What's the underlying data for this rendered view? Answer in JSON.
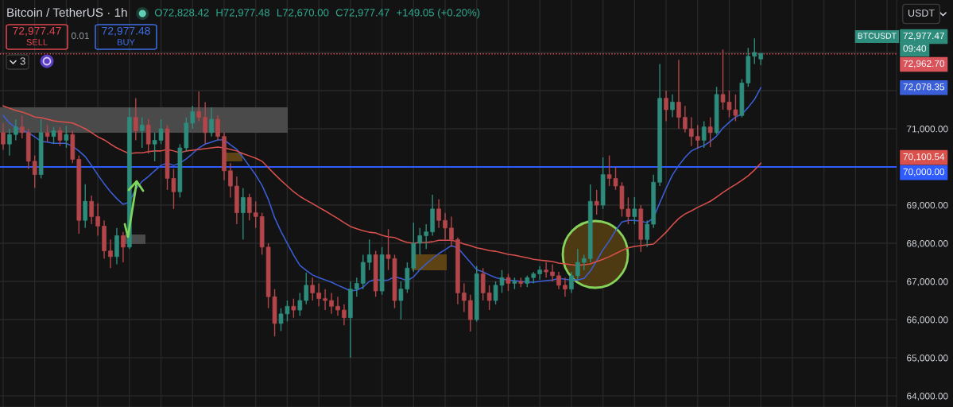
{
  "chart_data": {
    "type": "candlestick",
    "title": "Bitcoin / TetherUS · 1h",
    "categories": [
      null,
      null,
      null,
      null,
      null,
      null,
      null,
      null,
      null,
      null,
      null,
      null,
      null,
      null,
      null,
      null,
      null,
      null,
      null,
      null,
      null,
      null,
      null,
      null,
      null,
      null,
      null,
      null,
      null,
      null,
      null,
      null,
      null,
      null,
      null,
      null,
      null,
      null,
      null,
      null,
      null,
      null,
      null,
      null,
      null,
      null,
      null,
      null,
      null,
      null,
      null,
      null,
      null,
      null,
      null,
      null,
      null,
      null,
      null,
      null,
      null,
      null,
      null,
      null,
      null,
      null,
      null,
      null,
      null,
      null,
      null,
      null,
      null,
      null,
      null,
      null,
      null,
      null,
      null,
      null,
      null,
      null,
      null,
      null,
      null,
      null,
      null,
      null,
      null,
      null,
      null,
      null,
      null,
      null,
      null,
      null,
      null,
      null,
      null,
      null,
      null,
      null,
      null,
      null,
      null,
      null,
      null,
      null,
      null,
      null,
      null,
      null,
      null,
      null,
      null,
      null,
      null,
      null,
      null,
      null,
      null,
      null,
      null,
      null,
      null,
      null,
      null,
      null,
      null,
      null,
      null,
      null,
      null,
      null,
      null,
      null,
      null,
      null,
      null,
      null,
      null,
      null
    ],
    "ohlc": [
      [
        70900,
        71150,
        70450,
        70600
      ],
      [
        70600,
        71000,
        70300,
        70850
      ],
      [
        70850,
        71250,
        70700,
        71050
      ],
      [
        71050,
        71350,
        70750,
        70900
      ],
      [
        70900,
        71000,
        69950,
        70150
      ],
      [
        70150,
        70300,
        69450,
        69800
      ],
      [
        69800,
        71250,
        69700,
        70900
      ],
      [
        70900,
        71100,
        70650,
        70800
      ],
      [
        70800,
        71050,
        70600,
        70950
      ],
      [
        70950,
        71050,
        70550,
        70700
      ],
      [
        70700,
        71080,
        70500,
        70850
      ],
      [
        70850,
        70950,
        70100,
        70200
      ],
      [
        70200,
        70300,
        68250,
        68600
      ],
      [
        68600,
        69550,
        68400,
        69100
      ],
      [
        69100,
        69250,
        68500,
        68700
      ],
      [
        68700,
        69050,
        68200,
        68450
      ],
      [
        68450,
        68600,
        67600,
        67800
      ],
      [
        67800,
        68100,
        67350,
        67650
      ],
      [
        67650,
        68400,
        67450,
        68200
      ],
      [
        68200,
        68300,
        67500,
        67900
      ],
      [
        67900,
        71550,
        67850,
        71300
      ],
      [
        71300,
        71800,
        70700,
        70950
      ],
      [
        70950,
        71300,
        70500,
        71100
      ],
      [
        71100,
        71250,
        70350,
        70600
      ],
      [
        70600,
        70900,
        70150,
        70700
      ],
      [
        70700,
        71250,
        70600,
        71000
      ],
      [
        71000,
        71100,
        69400,
        69700
      ],
      [
        69700,
        69950,
        68900,
        69350
      ],
      [
        69350,
        70600,
        69200,
        70500
      ],
      [
        70500,
        71300,
        70400,
        71150
      ],
      [
        71150,
        71600,
        71000,
        71450
      ],
      [
        71450,
        71980,
        71200,
        71300
      ],
      [
        71300,
        71700,
        70600,
        70900
      ],
      [
        70900,
        71560,
        70800,
        71250
      ],
      [
        71250,
        71350,
        70700,
        70800
      ],
      [
        70800,
        70900,
        69650,
        69900
      ],
      [
        69900,
        70100,
        69200,
        69500
      ],
      [
        69500,
        69750,
        68500,
        68800
      ],
      [
        68800,
        69450,
        68100,
        69200
      ],
      [
        69200,
        69300,
        68600,
        68800
      ],
      [
        68800,
        69100,
        68400,
        68700
      ],
      [
        68700,
        68800,
        67700,
        67900
      ],
      [
        67900,
        68000,
        66300,
        66600
      ],
      [
        66600,
        66800,
        65560,
        65900
      ],
      [
        65900,
        66300,
        65700,
        66150
      ],
      [
        66150,
        66500,
        65950,
        66350
      ],
      [
        66350,
        66550,
        66050,
        66250
      ],
      [
        66250,
        66700,
        66100,
        66500
      ],
      [
        66500,
        67230,
        66400,
        66900
      ],
      [
        66900,
        67100,
        66500,
        66700
      ],
      [
        66700,
        66950,
        66350,
        66550
      ],
      [
        66550,
        66800,
        66250,
        66500
      ],
      [
        66500,
        66700,
        66150,
        66350
      ],
      [
        66350,
        66600,
        66100,
        66250
      ],
      [
        66250,
        66400,
        65850,
        66050
      ],
      [
        66050,
        67000,
        65000,
        66800
      ],
      [
        66800,
        67100,
        66600,
        66950
      ],
      [
        66950,
        67700,
        66800,
        67500
      ],
      [
        67500,
        68100,
        67300,
        67700
      ],
      [
        67700,
        67800,
        66600,
        66750
      ],
      [
        66750,
        67900,
        66650,
        67700
      ],
      [
        67700,
        68370,
        67300,
        67600
      ],
      [
        67600,
        67700,
        66300,
        66500
      ],
      [
        66500,
        67000,
        66000,
        66800
      ],
      [
        66800,
        67500,
        66700,
        67350
      ],
      [
        67350,
        68540,
        67250,
        68000
      ],
      [
        68000,
        68400,
        67700,
        68200
      ],
      [
        68200,
        68500,
        67850,
        68300
      ],
      [
        68300,
        69270,
        68200,
        68900
      ],
      [
        68900,
        69150,
        68400,
        68600
      ],
      [
        68600,
        68800,
        68100,
        68400
      ],
      [
        68400,
        68700,
        67900,
        68100
      ],
      [
        68100,
        68150,
        66400,
        66700
      ],
      [
        66700,
        66950,
        66200,
        66500
      ],
      [
        66500,
        66650,
        65690,
        66000
      ],
      [
        66000,
        67400,
        65950,
        67200
      ],
      [
        67200,
        67350,
        66500,
        66700
      ],
      [
        66700,
        66900,
        66250,
        66500
      ],
      [
        66500,
        67000,
        66400,
        66900
      ],
      [
        66900,
        67300,
        66700,
        67100
      ],
      [
        67100,
        67200,
        66750,
        66950
      ],
      [
        66950,
        67100,
        66800,
        67000
      ],
      [
        67000,
        67100,
        66850,
        66950
      ],
      [
        66950,
        67150,
        66850,
        67100
      ],
      [
        67100,
        67250,
        66950,
        67200
      ],
      [
        67200,
        67400,
        67050,
        67300
      ],
      [
        67300,
        67500,
        67100,
        67250
      ],
      [
        67250,
        67450,
        67000,
        67150
      ],
      [
        67150,
        67250,
        66800,
        66900
      ],
      [
        66900,
        67100,
        66600,
        66800
      ],
      [
        66800,
        67250,
        66700,
        67150
      ],
      [
        67150,
        67850,
        67050,
        67500
      ],
      [
        67500,
        67700,
        67300,
        67600
      ],
      [
        67600,
        69540,
        67500,
        69100
      ],
      [
        69100,
        69400,
        68750,
        69000
      ],
      [
        69000,
        70250,
        68900,
        69800
      ],
      [
        69800,
        70300,
        69500,
        69700
      ],
      [
        69700,
        70000,
        69400,
        69500
      ],
      [
        69500,
        69600,
        68700,
        68900
      ],
      [
        68900,
        69200,
        68500,
        68700
      ],
      [
        68700,
        69210,
        68500,
        68900
      ],
      [
        68900,
        69000,
        67770,
        68100
      ],
      [
        68100,
        68600,
        67900,
        68500
      ],
      [
        68500,
        69800,
        68400,
        69600
      ],
      [
        69600,
        72700,
        69500,
        71800
      ],
      [
        71800,
        72000,
        71200,
        71500
      ],
      [
        71500,
        71900,
        71300,
        71700
      ],
      [
        71700,
        72810,
        71000,
        71300
      ],
      [
        71300,
        71600,
        70900,
        71000
      ],
      [
        71000,
        71300,
        70550,
        70800
      ],
      [
        70800,
        71100,
        70480,
        70700
      ],
      [
        70700,
        71200,
        70500,
        71050
      ],
      [
        71050,
        71300,
        70520,
        70900
      ],
      [
        70900,
        72100,
        70850,
        71900
      ],
      [
        71900,
        73080,
        71500,
        71700
      ],
      [
        71700,
        72000,
        71300,
        71500
      ],
      [
        71500,
        71900,
        71200,
        71350
      ],
      [
        71350,
        72300,
        71300,
        72200
      ],
      [
        72200,
        73120,
        72100,
        72900
      ],
      [
        72900,
        73370,
        72700,
        73000
      ],
      [
        72828.42,
        72977.48,
        72670.0,
        72977.47
      ],
      null,
      null,
      null,
      null,
      null,
      null,
      null,
      null,
      null,
      null,
      null,
      null,
      null,
      null,
      null,
      null,
      null,
      null,
      null,
      null,
      null
    ],
    "colors": [
      "#b3464a",
      "#2e8c7c",
      "#2e8c7c",
      "#b3464a",
      "#b3464a",
      "#b3464a",
      "#2e8c7c",
      "#b3464a",
      "#2e8c7c",
      "#b3464a",
      "#2e8c7c",
      "#b3464a",
      "#b3464a",
      "#2e8c7c",
      "#b3464a",
      "#b3464a",
      "#b3464a",
      "#b3464a",
      "#2e8c7c",
      "#b3464a",
      "#2e8c7c",
      "#b3464a",
      "#2e8c7c",
      "#b3464a",
      "#2e8c7c",
      "#2e8c7c",
      "#b3464a",
      "#b3464a",
      "#2e8c7c",
      "#2e8c7c",
      "#2e8c7c",
      "#b3464a",
      "#b3464a",
      "#2e8c7c",
      "#b3464a",
      "#b3464a",
      "#b3464a",
      "#b3464a",
      "#2e8c7c",
      "#b3464a",
      "#b3464a",
      "#b3464a",
      "#b3464a",
      "#b3464a",
      "#2e8c7c",
      "#2e8c7c",
      "#b3464a",
      "#2e8c7c",
      "#2e8c7c",
      "#b3464a",
      "#b3464a",
      "#b3464a",
      "#b3464a",
      "#b3464a",
      "#b3464a",
      "#2e8c7c",
      "#2e8c7c",
      "#2e8c7c",
      "#2e8c7c",
      "#b3464a",
      "#2e8c7c",
      "#b3464a",
      "#b3464a",
      "#2e8c7c",
      "#2e8c7c",
      "#2e8c7c",
      "#2e8c7c",
      "#2e8c7c",
      "#2e8c7c",
      "#b3464a",
      "#b3464a",
      "#b3464a",
      "#b3464a",
      "#b3464a",
      "#b3464a",
      "#2e8c7c",
      "#b3464a",
      "#b3464a",
      "#2e8c7c",
      "#2e8c7c",
      "#b3464a",
      "#2e8c7c",
      "#b3464a",
      "#2e8c7c",
      "#2e8c7c",
      "#2e8c7c",
      "#b3464a",
      "#b3464a",
      "#b3464a",
      "#b3464a",
      "#2e8c7c",
      "#2e8c7c",
      "#2e8c7c",
      "#2e8c7c",
      "#b3464a",
      "#2e8c7c",
      "#b3464a",
      "#b3464a",
      "#b3464a",
      "#b3464a",
      "#2e8c7c",
      "#b3464a",
      "#2e8c7c",
      "#2e8c7c",
      "#2e8c7c",
      "#b3464a",
      "#2e8c7c",
      "#b3464a",
      "#b3464a",
      "#b3464a",
      "#b3464a",
      "#2e8c7c",
      "#b3464a",
      "#2e8c7c",
      "#b3464a",
      "#b3464a",
      "#b3464a",
      "#2e8c7c",
      "#2e8c7c",
      "#2e8c7c",
      "#2e8c7c",
      null,
      null,
      null,
      null,
      null,
      null,
      null,
      null,
      null,
      null,
      null,
      null,
      null,
      null,
      null,
      null,
      null,
      null,
      null,
      null,
      null
    ],
    "value_labels": [
      null,
      null,
      null,
      null,
      null,
      null,
      null,
      null,
      null,
      null,
      null,
      null,
      null,
      null,
      null,
      null,
      null,
      null,
      null,
      null,
      null,
      null,
      null,
      null,
      null,
      null,
      null,
      null,
      null,
      null,
      null,
      null,
      null,
      null,
      null,
      null,
      null,
      null,
      null,
      null,
      null,
      null,
      null,
      null,
      null,
      null,
      null,
      null,
      null,
      null,
      null,
      null,
      null,
      null,
      null,
      null,
      null,
      null,
      null,
      null,
      null,
      null,
      null,
      null,
      null,
      null,
      null,
      null,
      null,
      null,
      null,
      null,
      null,
      null,
      null,
      null,
      null,
      null,
      null,
      null,
      null,
      null,
      null,
      null,
      null,
      null,
      null,
      null,
      null,
      null,
      null,
      null,
      null,
      null,
      null,
      null,
      null,
      null,
      null,
      null,
      null,
      null,
      null,
      null,
      null,
      null,
      null,
      null,
      null,
      null,
      null,
      null,
      null,
      null,
      null,
      null,
      null,
      null,
      null,
      null,
      "72,977.47",
      null,
      null,
      null,
      null,
      null,
      null,
      null,
      null,
      null,
      null,
      null,
      null,
      null,
      null,
      null,
      null,
      null,
      null,
      null,
      null,
      null
    ],
    "series": [
      {
        "type": "line",
        "color": "#3a5fd9",
        "values": [
          71350,
          71150,
          71040,
          70960,
          70900,
          70790,
          70670,
          70650,
          70620,
          70620,
          70620,
          70540,
          70420,
          70270,
          70040,
          69790,
          69560,
          69350,
          69170,
          69020,
          69080,
          69420,
          69620,
          69750,
          69900,
          70040,
          70100,
          70040,
          70100,
          70210,
          70350,
          70500,
          70600,
          70650,
          70710,
          70710,
          70580,
          70460,
          70250,
          70020,
          69790,
          69520,
          69150,
          68670,
          68310,
          68000,
          67690,
          67420,
          67290,
          67170,
          67100,
          67040,
          66980,
          66900,
          66830,
          66750,
          66770,
          66850,
          67000,
          67060,
          67020,
          67040,
          67120,
          67080,
          67020,
          67120,
          67310,
          67460,
          67600,
          67730,
          67830,
          67940,
          67880,
          67690,
          67500,
          67310,
          67250,
          67170,
          67100,
          67060,
          67040,
          67020,
          67000,
          66980,
          66980,
          67000,
          67020,
          67040,
          67080,
          67060,
          67040,
          67040,
          67080,
          67270,
          67540,
          67830,
          68060,
          68330,
          68560,
          68600,
          68600,
          68580,
          68540,
          68670,
          69060,
          69440,
          69790,
          70040,
          70250,
          70420,
          70500,
          70560,
          70670,
          70810,
          71020,
          71170,
          71310,
          71380,
          71560,
          71770,
          72078.35,
          null,
          null,
          null,
          null,
          null,
          null,
          null,
          null,
          null,
          null,
          null,
          null,
          null,
          null,
          null,
          null,
          null,
          null,
          null,
          null,
          null
        ]
      },
      {
        "type": "line",
        "color": "#d9504c",
        "values": [
          71600,
          71540,
          71480,
          71440,
          71380,
          71310,
          71290,
          71250,
          71210,
          71190,
          71170,
          71150,
          71080,
          71000,
          70900,
          70790,
          70710,
          70600,
          70500,
          70420,
          70350,
          70370,
          70370,
          70400,
          70420,
          70420,
          70460,
          70420,
          70370,
          70420,
          70440,
          70460,
          70480,
          70500,
          70520,
          70500,
          70460,
          70420,
          70350,
          70290,
          70230,
          70150,
          69980,
          69810,
          69650,
          69500,
          69350,
          69230,
          69130,
          69040,
          68940,
          68850,
          68750,
          68650,
          68540,
          68440,
          68380,
          68330,
          68290,
          68270,
          68210,
          68170,
          68150,
          68080,
          68020,
          68000,
          68020,
          68020,
          68040,
          68080,
          68080,
          68080,
          68040,
          67980,
          67940,
          67880,
          67850,
          67810,
          67790,
          67750,
          67710,
          67690,
          67650,
          67620,
          67580,
          67560,
          67540,
          67520,
          67480,
          67460,
          67440,
          67420,
          67440,
          67460,
          67520,
          67580,
          67650,
          67730,
          67810,
          67880,
          67920,
          67940,
          67960,
          67980,
          68130,
          68290,
          68480,
          68650,
          68770,
          68850,
          68940,
          69020,
          69100,
          69210,
          69330,
          69440,
          69540,
          69650,
          69770,
          69920,
          70100.54,
          null,
          null,
          null,
          null,
          null,
          null,
          null,
          null,
          null,
          null,
          null,
          null,
          null,
          null,
          null,
          null,
          null,
          null,
          null,
          null,
          null
        ]
      }
    ],
    "ylim": [
      63710,
      74375
    ],
    "yticks": [
      {
        "value": 64000,
        "label": "64,000.00"
      },
      {
        "value": 65000,
        "label": "65,000.00"
      },
      {
        "value": 66000,
        "label": "66,000.00"
      },
      {
        "value": 67000,
        "label": "67,000.00"
      },
      {
        "value": 68000,
        "label": "68,000.00"
      },
      {
        "value": 69000,
        "label": "69,000.00"
      },
      {
        "value": 70000,
        "label": null
      },
      {
        "value": 71000,
        "label": "71,000.00"
      },
      {
        "value": 72000,
        "label": null
      },
      {
        "value": 73000,
        "label": null
      }
    ],
    "tick_labels": "y",
    "grid": true,
    "ref_lines": [
      {
        "axis": "y",
        "value": 70000,
        "label": "70,000.00",
        "color": "#2f5bff",
        "line_style": "solid"
      },
      {
        "axis": "y",
        "value": 72962.7,
        "label": "72,962.70",
        "color": "#d9535b",
        "line_style": "dotted"
      }
    ],
    "annotations": [
      "O72,828.42",
      "H72,977.48",
      "L72,670.00",
      "C72,977.47",
      "+149.05 (+0.20%)",
      "72,977.47",
      "SELL",
      "0.01",
      "72,977.48",
      "BUY",
      "3",
      "USDT",
      "BTCUSDT",
      "09:40",
      "72,078.35",
      "70,100.54"
    ]
  }
}
